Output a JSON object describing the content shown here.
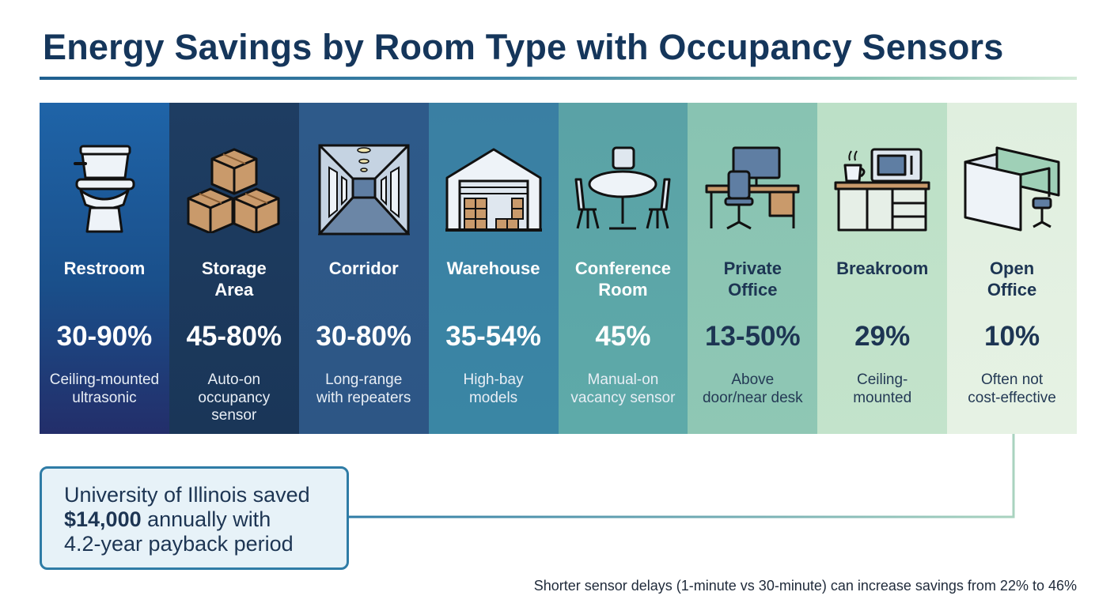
{
  "title": "Energy Savings by Room Type with Occupancy Sensors",
  "rooms": [
    {
      "name": "Restroom",
      "savings": "30-90%",
      "note": "Ceiling-mounted\nultrasonic",
      "color": "#1e5fa3",
      "icon": "toilet-icon"
    },
    {
      "name": "Storage\nArea",
      "savings": "45-80%",
      "note": "Auto-on\noccupancy\nsensor",
      "color": "#1b3a5e",
      "icon": "boxes-icon"
    },
    {
      "name": "Corridor",
      "savings": "30-80%",
      "note": "Long-range\nwith repeaters",
      "color": "#2f5b8c",
      "icon": "corridor-icon"
    },
    {
      "name": "Warehouse",
      "savings": "35-54%",
      "note": "High-bay\nmodels",
      "color": "#3a83a4",
      "icon": "warehouse-icon"
    },
    {
      "name": "Conference\nRoom",
      "savings": "45%",
      "note": "Manual-on\nvacancy sensor",
      "color": "#5ba6a9",
      "icon": "conference-table-icon"
    },
    {
      "name": "Private\nOffice",
      "savings": "13-50%",
      "note": "Above\ndoor/near desk",
      "color": "#8cc6b4",
      "icon": "desk-icon"
    },
    {
      "name": "Breakroom",
      "savings": "29%",
      "note": "Ceiling-\nmounted",
      "color": "#bfe1c8",
      "icon": "kitchen-icon"
    },
    {
      "name": "Open\nOffice",
      "savings": "10%",
      "note": "Often not\ncost-effective",
      "color": "#e2f1e0",
      "icon": "cubicles-icon"
    }
  ],
  "callout": {
    "line1": "University of Illinois saved",
    "amount": "$14,000",
    "line2_rest": " annually with",
    "line3": "4.2-year payback period"
  },
  "footnote": "Shorter sensor delays (1-minute vs 30-minute) can increase savings from 22% to 46%"
}
